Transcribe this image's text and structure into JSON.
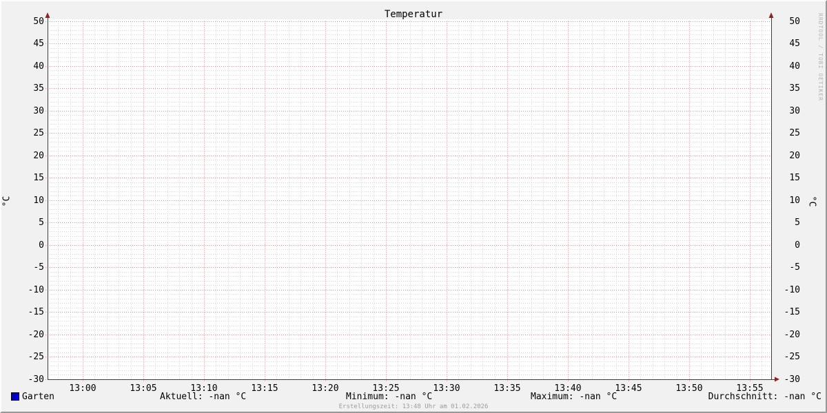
{
  "title": "Temperatur",
  "watermark": "RRDTOOL / TOBI OETIKER",
  "footer": {
    "creation_text": "Erstellungszeit: 13:48 Uhr am 01.02.2026"
  },
  "legend": {
    "series_label": "Garten",
    "series_color": "#0000cc",
    "stats": [
      {
        "label": "Aktuell: -nan °C"
      },
      {
        "label": "Minimum: -nan °C"
      },
      {
        "label": "Maximum: -nan °C"
      },
      {
        "label": "Durchschnitt: -nan °C"
      }
    ]
  },
  "chart_data": {
    "type": "line",
    "title": "Temperatur",
    "ylabel_left": "°C",
    "ylabel_right": "°C",
    "ylim": [
      -30,
      50
    ],
    "y_major_step": 5,
    "y_minor_step": 1,
    "x_tick_labels": [
      "13:00",
      "13:05",
      "13:10",
      "13:15",
      "13:20",
      "13:25",
      "13:30",
      "13:35",
      "13:40",
      "13:45",
      "13:50",
      "13:55"
    ],
    "x_major_step_minutes": 5,
    "x_minor_step_minutes": 1,
    "grid": true,
    "legend_position": "bottom",
    "series": [
      {
        "name": "Garten",
        "color": "#0000cc",
        "values": [],
        "note_all_values": "-nan"
      }
    ],
    "colors": {
      "plot_background": "#ffffff",
      "canvas_background": "#f1f1f1",
      "major_grid": "#e88888",
      "minor_grid": "#d3d3d3",
      "axis": "#3c3c3c",
      "arrow": "#8f2323"
    }
  }
}
